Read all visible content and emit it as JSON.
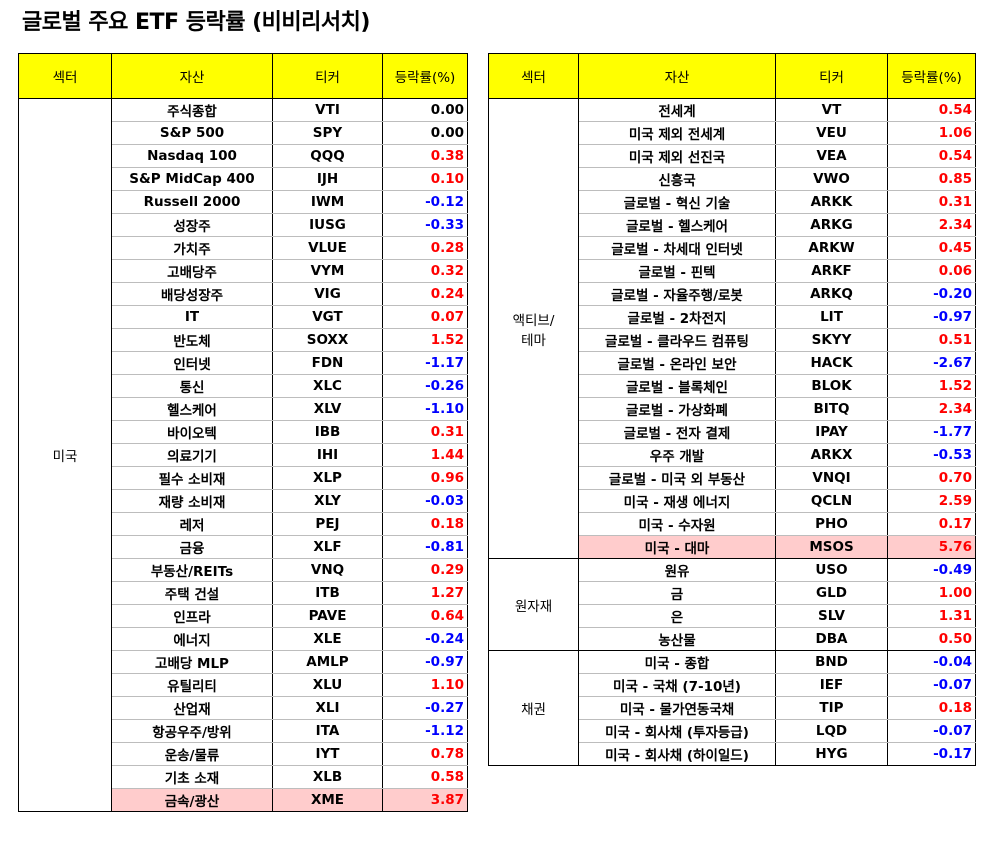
{
  "title": "글로벌 주요 ETF 등락률 (비비리서치)",
  "headers": {
    "sector": "섹터",
    "asset": "자산",
    "ticker": "티커",
    "change": "등락률(%)"
  },
  "left_table": {
    "groups": [
      {
        "sector": "미국",
        "rows": [
          {
            "asset": "주식종합",
            "ticker": "VTI",
            "change": "0.00"
          },
          {
            "asset": "S&P 500",
            "ticker": "SPY",
            "change": "0.00"
          },
          {
            "asset": "Nasdaq 100",
            "ticker": "QQQ",
            "change": "0.38"
          },
          {
            "asset": "S&P MidCap 400",
            "ticker": "IJH",
            "change": "0.10"
          },
          {
            "asset": "Russell 2000",
            "ticker": "IWM",
            "change": "-0.12"
          },
          {
            "asset": "성장주",
            "ticker": "IUSG",
            "change": "-0.33"
          },
          {
            "asset": "가치주",
            "ticker": "VLUE",
            "change": "0.28"
          },
          {
            "asset": "고배당주",
            "ticker": "VYM",
            "change": "0.32"
          },
          {
            "asset": "배당성장주",
            "ticker": "VIG",
            "change": "0.24"
          },
          {
            "asset": "IT",
            "ticker": "VGT",
            "change": "0.07"
          },
          {
            "asset": "반도체",
            "ticker": "SOXX",
            "change": "1.52"
          },
          {
            "asset": "인터넷",
            "ticker": "FDN",
            "change": "-1.17"
          },
          {
            "asset": "통신",
            "ticker": "XLC",
            "change": "-0.26"
          },
          {
            "asset": "헬스케어",
            "ticker": "XLV",
            "change": "-1.10"
          },
          {
            "asset": "바이오텍",
            "ticker": "IBB",
            "change": "0.31"
          },
          {
            "asset": "의료기기",
            "ticker": "IHI",
            "change": "1.44"
          },
          {
            "asset": "필수 소비재",
            "ticker": "XLP",
            "change": "0.96"
          },
          {
            "asset": "재량 소비재",
            "ticker": "XLY",
            "change": "-0.03"
          },
          {
            "asset": "레저",
            "ticker": "PEJ",
            "change": "0.18"
          },
          {
            "asset": "금융",
            "ticker": "XLF",
            "change": "-0.81"
          },
          {
            "asset": "부동산/REITs",
            "ticker": "VNQ",
            "change": "0.29"
          },
          {
            "asset": "주택 건설",
            "ticker": "ITB",
            "change": "1.27"
          },
          {
            "asset": "인프라",
            "ticker": "PAVE",
            "change": "0.64"
          },
          {
            "asset": "에너지",
            "ticker": "XLE",
            "change": "-0.24"
          },
          {
            "asset": "고배당 MLP",
            "ticker": "AMLP",
            "change": "-0.97"
          },
          {
            "asset": "유틸리티",
            "ticker": "XLU",
            "change": "1.10"
          },
          {
            "asset": "산업재",
            "ticker": "XLI",
            "change": "-0.27"
          },
          {
            "asset": "항공우주/방위",
            "ticker": "ITA",
            "change": "-1.12"
          },
          {
            "asset": "운송/물류",
            "ticker": "IYT",
            "change": "0.78"
          },
          {
            "asset": "기초 소재",
            "ticker": "XLB",
            "change": "0.58"
          },
          {
            "asset": "금속/광산",
            "ticker": "XME",
            "change": "3.87",
            "highlight": true
          }
        ]
      }
    ]
  },
  "right_table": {
    "groups": [
      {
        "sector": "액티브/\n테마",
        "rows": [
          {
            "asset": "전세계",
            "ticker": "VT",
            "change": "0.54"
          },
          {
            "asset": "미국 제외 전세계",
            "ticker": "VEU",
            "change": "1.06"
          },
          {
            "asset": "미국 제외 선진국",
            "ticker": "VEA",
            "change": "0.54"
          },
          {
            "asset": "신흥국",
            "ticker": "VWO",
            "change": "0.85"
          },
          {
            "asset": "글로벌 - 혁신 기술",
            "ticker": "ARKK",
            "change": "0.31"
          },
          {
            "asset": "글로벌 - 헬스케어",
            "ticker": "ARKG",
            "change": "2.34"
          },
          {
            "asset": "글로벌 - 차세대 인터넷",
            "ticker": "ARKW",
            "change": "0.45"
          },
          {
            "asset": "글로벌 - 핀텍",
            "ticker": "ARKF",
            "change": "0.06"
          },
          {
            "asset": "글로벌 - 자율주행/로봇",
            "ticker": "ARKQ",
            "change": "-0.20"
          },
          {
            "asset": "글로벌 - 2차전지",
            "ticker": "LIT",
            "change": "-0.97"
          },
          {
            "asset": "글로벌 - 클라우드 컴퓨팅",
            "ticker": "SKYY",
            "change": "0.51"
          },
          {
            "asset": "글로벌 - 온라인 보안",
            "ticker": "HACK",
            "change": "-2.67"
          },
          {
            "asset": "글로벌 - 블록체인",
            "ticker": "BLOK",
            "change": "1.52"
          },
          {
            "asset": "글로벌 - 가상화폐",
            "ticker": "BITQ",
            "change": "2.34"
          },
          {
            "asset": "글로벌 - 전자 결제",
            "ticker": "IPAY",
            "change": "-1.77"
          },
          {
            "asset": "우주 개발",
            "ticker": "ARKX",
            "change": "-0.53"
          },
          {
            "asset": "글로벌 - 미국 외 부동산",
            "ticker": "VNQI",
            "change": "0.70"
          },
          {
            "asset": "미국 - 재생 에너지",
            "ticker": "QCLN",
            "change": "2.59"
          },
          {
            "asset": "미국 - 수자원",
            "ticker": "PHO",
            "change": "0.17"
          },
          {
            "asset": "미국 - 대마",
            "ticker": "MSOS",
            "change": "5.76",
            "highlight": true
          }
        ]
      },
      {
        "sector": "원자재",
        "rows": [
          {
            "asset": "원유",
            "ticker": "USO",
            "change": "-0.49"
          },
          {
            "asset": "금",
            "ticker": "GLD",
            "change": "1.00"
          },
          {
            "asset": "은",
            "ticker": "SLV",
            "change": "1.31"
          },
          {
            "asset": "농산물",
            "ticker": "DBA",
            "change": "0.50"
          }
        ]
      },
      {
        "sector": "채권",
        "rows": [
          {
            "asset": "미국 - 종합",
            "ticker": "BND",
            "change": "-0.04"
          },
          {
            "asset": "미국 - 국채 (7-10년)",
            "ticker": "IEF",
            "change": "-0.07"
          },
          {
            "asset": "미국 - 물가연동국채",
            "ticker": "TIP",
            "change": "0.18"
          },
          {
            "asset": "미국 - 회사채 (투자등급)",
            "ticker": "LQD",
            "change": "-0.07"
          },
          {
            "asset": "미국 - 회사채 (하이일드)",
            "ticker": "HYG",
            "change": "-0.17"
          }
        ]
      }
    ]
  },
  "colors": {
    "header_bg": "#ffff00",
    "positive": "#ff0000",
    "negative": "#0000ff",
    "highlight_bg": "#ffcccc"
  }
}
